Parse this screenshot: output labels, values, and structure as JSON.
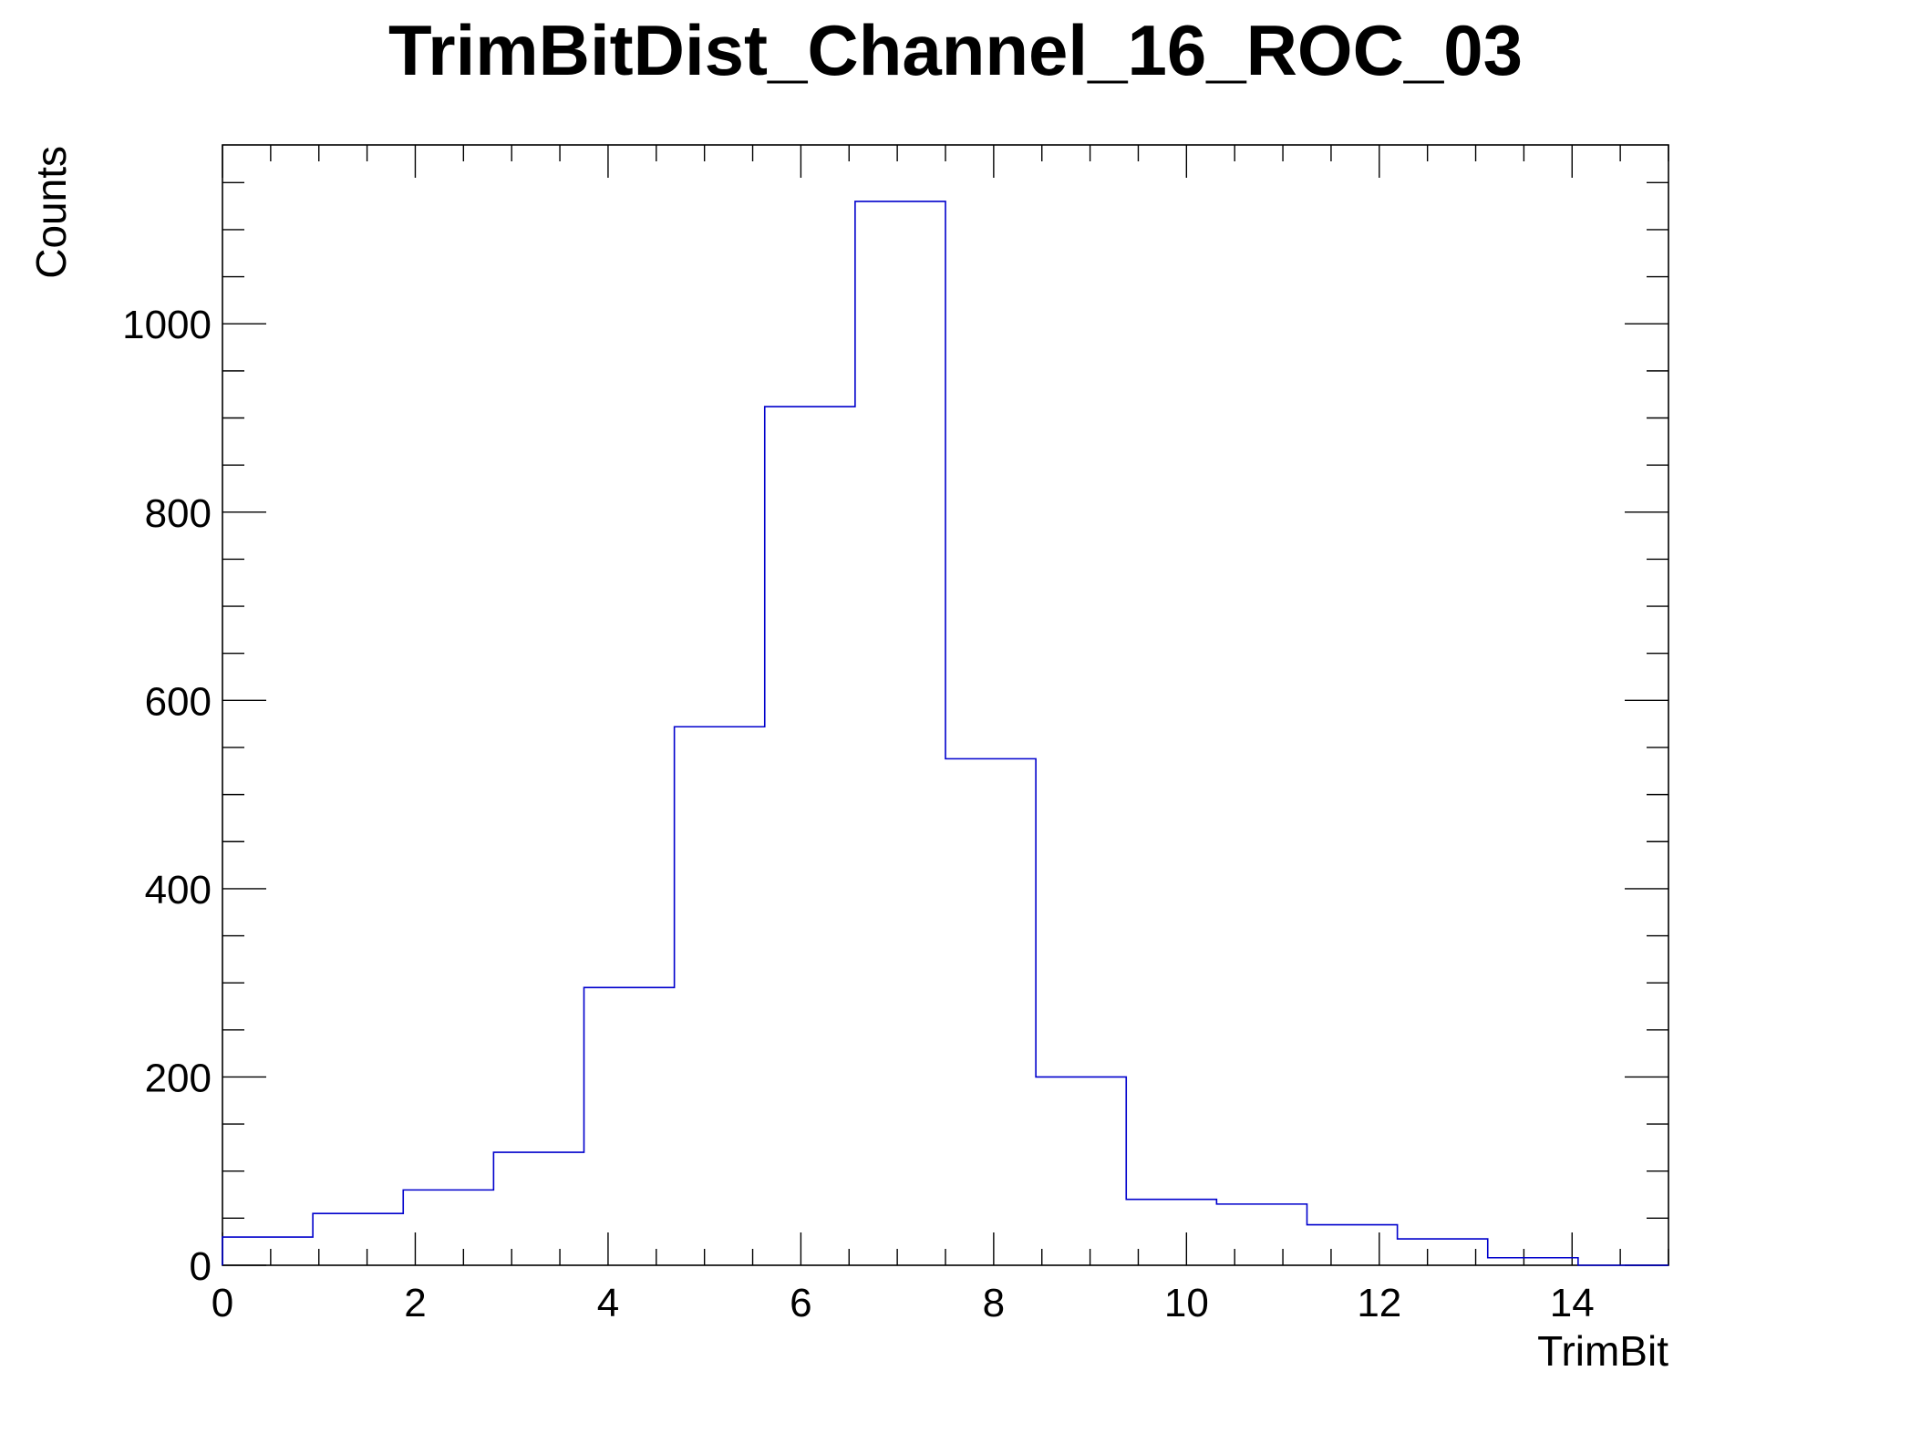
{
  "chart_data": {
    "type": "bar",
    "title": "TrimBitDist_Channel_16_ROC_03",
    "xlabel": "TrimBit",
    "ylabel": "Counts",
    "xlim": [
      0,
      15
    ],
    "ylim": [
      0,
      1190
    ],
    "bin_width": 0.9375,
    "bin_edges": [
      0,
      0.9375,
      1.875,
      2.8125,
      3.75,
      4.6875,
      5.625,
      6.5625,
      7.5,
      8.4375,
      9.375,
      10.3125,
      11.25,
      12.1875,
      13.125,
      14.0625,
      15
    ],
    "values": [
      30,
      55,
      80,
      120,
      295,
      572,
      912,
      1130,
      538,
      200,
      70,
      65,
      43,
      28,
      8,
      0
    ],
    "x_ticks": [
      {
        "value": 0,
        "label": "0"
      },
      {
        "value": 2,
        "label": "2"
      },
      {
        "value": 4,
        "label": "4"
      },
      {
        "value": 6,
        "label": "6"
      },
      {
        "value": 8,
        "label": "8"
      },
      {
        "value": 10,
        "label": "10"
      },
      {
        "value": 12,
        "label": "12"
      },
      {
        "value": 14,
        "label": "14"
      }
    ],
    "y_ticks": [
      {
        "value": 0,
        "label": "0"
      },
      {
        "value": 200,
        "label": "200"
      },
      {
        "value": 400,
        "label": "400"
      },
      {
        "value": 600,
        "label": "600"
      },
      {
        "value": 800,
        "label": "800"
      },
      {
        "value": 1000,
        "label": "1000"
      }
    ],
    "line_color": "#0000cc",
    "axis_color": "#000000",
    "grid": false,
    "legend": "none"
  }
}
